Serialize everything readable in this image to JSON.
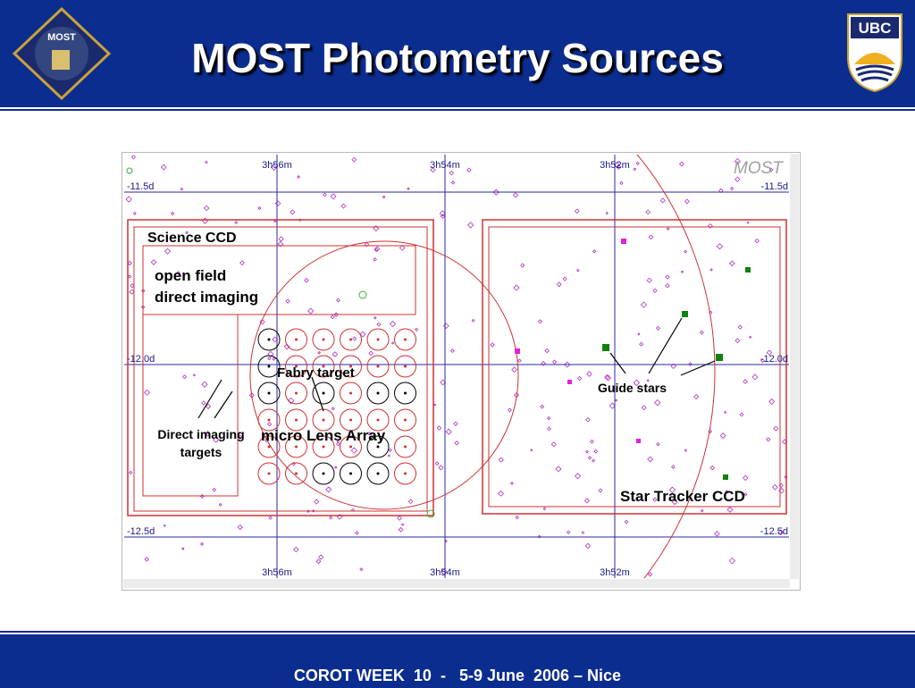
{
  "header": {
    "title": "MOST Photometry Sources",
    "logo_left": "MOST",
    "logo_right": "UBC"
  },
  "sky_map": {
    "ra_labels": [
      "3h56m",
      "3h54m",
      "3h52m"
    ],
    "dec_labels": [
      "-11.5d",
      "-12.0d",
      "-12.5d"
    ],
    "watermark": "MOST",
    "annotations": {
      "science_ccd": "Science CCD",
      "open_field": [
        "open field",
        "direct imaging"
      ],
      "fabry_target": "Fabry target",
      "direct_imaging_targets": [
        "Direct imaging",
        "targets"
      ],
      "lens_array": "micro Lens Array",
      "guide_stars": "Guide stars",
      "star_tracker": "Star Tracker CCD"
    }
  },
  "footer": {
    "text": "COROT WEEK  10  -   5-9 June  2006 – Nice"
  }
}
